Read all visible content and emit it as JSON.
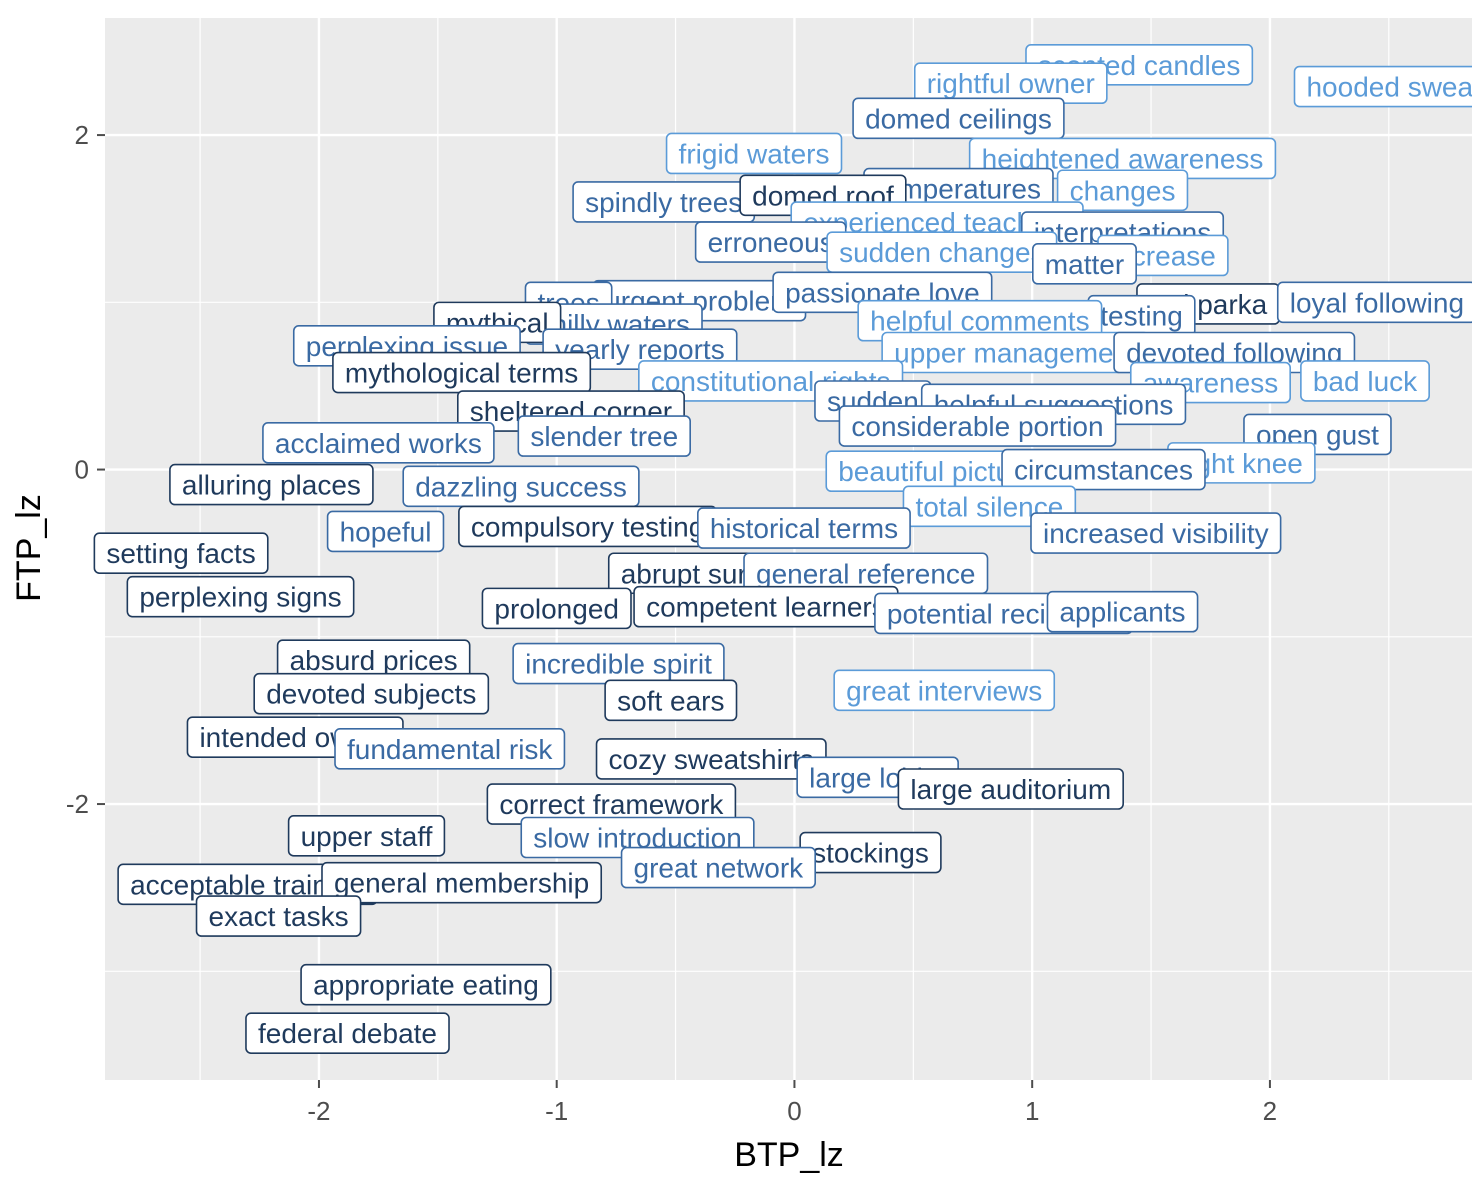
{
  "chart_data": {
    "type": "scatter",
    "title": "",
    "xlabel": "BTP_lz",
    "ylabel": "FTP_lz",
    "xlim": [
      -2.9,
      2.85
    ],
    "ylim": [
      -3.65,
      2.7
    ],
    "xticks": [
      -2,
      -1,
      0,
      1,
      2
    ],
    "yticks": [
      -2,
      0,
      2
    ],
    "xtick_labels": [
      "-2",
      "-1",
      "0",
      "1",
      "2"
    ],
    "ytick_labels": [
      "-2",
      "0",
      "2"
    ],
    "grid": true,
    "legend": "none",
    "colors": {
      "panel": "#ebebeb",
      "grid": "#ffffff",
      "dark": "#1f3a5c",
      "mid": "#3a6aa3",
      "light": "#5b9bd8",
      "tick": "#4d4d4d"
    },
    "points": [
      {
        "label": "scented candles",
        "x": 1.45,
        "y": 2.42,
        "shade": "light"
      },
      {
        "label": "hooded sweats",
        "x": 2.55,
        "y": 2.29,
        "shade": "light"
      },
      {
        "label": "rightful owner",
        "x": 0.91,
        "y": 2.31,
        "shade": "light"
      },
      {
        "label": "domed ceilings",
        "x": 0.69,
        "y": 2.1,
        "shade": "mid"
      },
      {
        "label": "frigid waters",
        "x": -0.17,
        "y": 1.89,
        "shade": "light"
      },
      {
        "label": "heightened awareness",
        "x": 1.38,
        "y": 1.86,
        "shade": "light"
      },
      {
        "label": "temperatures",
        "x": 0.69,
        "y": 1.68,
        "shade": "mid"
      },
      {
        "label": "changes",
        "x": 1.38,
        "y": 1.67,
        "shade": "light"
      },
      {
        "label": "spindly trees",
        "x": -0.55,
        "y": 1.6,
        "shade": "mid"
      },
      {
        "label": "domed roof",
        "x": 0.12,
        "y": 1.64,
        "shade": "dark"
      },
      {
        "label": "experienced teachers",
        "x": 0.6,
        "y": 1.48,
        "shade": "light"
      },
      {
        "label": "interpretations",
        "x": 1.38,
        "y": 1.42,
        "shade": "mid"
      },
      {
        "label": "erroneous",
        "x": -0.1,
        "y": 1.36,
        "shade": "mid"
      },
      {
        "label": "sudden changes",
        "x": 0.62,
        "y": 1.3,
        "shade": "light"
      },
      {
        "label": "increase",
        "x": 1.55,
        "y": 1.28,
        "shade": "light"
      },
      {
        "label": "matter",
        "x": 1.22,
        "y": 1.23,
        "shade": "mid"
      },
      {
        "label": "urgent problem",
        "x": -0.4,
        "y": 1.01,
        "shade": "mid"
      },
      {
        "label": "passionate love",
        "x": 0.37,
        "y": 1.06,
        "shade": "mid"
      },
      {
        "label": "trees",
        "x": -0.95,
        "y": 1.0,
        "shade": "mid"
      },
      {
        "label": "red parka",
        "x": 1.74,
        "y": 0.99,
        "shade": "dark"
      },
      {
        "label": "loyal following",
        "x": 2.45,
        "y": 1.0,
        "shade": "mid"
      },
      {
        "label": "testing",
        "x": 1.46,
        "y": 0.92,
        "shade": "mid"
      },
      {
        "label": "helpful comments",
        "x": 0.78,
        "y": 0.89,
        "shade": "light"
      },
      {
        "label": "chilly waters",
        "x": -0.76,
        "y": 0.87,
        "shade": "mid"
      },
      {
        "label": "mythical",
        "x": -1.25,
        "y": 0.88,
        "shade": "dark"
      },
      {
        "label": "perplexing issue",
        "x": -1.63,
        "y": 0.74,
        "shade": "mid"
      },
      {
        "label": "yearly reports",
        "x": -0.65,
        "y": 0.72,
        "shade": "mid"
      },
      {
        "label": "upper management",
        "x": 0.93,
        "y": 0.7,
        "shade": "light"
      },
      {
        "label": "devoted following",
        "x": 1.85,
        "y": 0.7,
        "shade": "mid"
      },
      {
        "label": "mythological terms",
        "x": -1.4,
        "y": 0.58,
        "shade": "dark"
      },
      {
        "label": "constitutional rights",
        "x": -0.1,
        "y": 0.53,
        "shade": "light"
      },
      {
        "label": "awareness",
        "x": 1.75,
        "y": 0.52,
        "shade": "light"
      },
      {
        "label": "bad luck",
        "x": 2.4,
        "y": 0.53,
        "shade": "light"
      },
      {
        "label": "sheltered corner",
        "x": -0.94,
        "y": 0.35,
        "shade": "dark"
      },
      {
        "label": "sudden",
        "x": 0.33,
        "y": 0.41,
        "shade": "mid"
      },
      {
        "label": "helpful suggestions",
        "x": 1.09,
        "y": 0.39,
        "shade": "mid"
      },
      {
        "label": "acclaimed works",
        "x": -1.75,
        "y": 0.16,
        "shade": "mid"
      },
      {
        "label": "slender tree",
        "x": -0.8,
        "y": 0.2,
        "shade": "mid"
      },
      {
        "label": "considerable portion",
        "x": 0.77,
        "y": 0.26,
        "shade": "mid"
      },
      {
        "label": "open gust",
        "x": 2.2,
        "y": 0.21,
        "shade": "mid"
      },
      {
        "label": "right knee",
        "x": 1.88,
        "y": 0.04,
        "shade": "light"
      },
      {
        "label": "beautiful picture",
        "x": 0.6,
        "y": -0.01,
        "shade": "light"
      },
      {
        "label": "circumstances",
        "x": 1.3,
        "y": 0.0,
        "shade": "mid"
      },
      {
        "label": "alluring places",
        "x": -2.2,
        "y": -0.09,
        "shade": "dark"
      },
      {
        "label": "dazzling success",
        "x": -1.15,
        "y": -0.1,
        "shade": "mid"
      },
      {
        "label": "total silence",
        "x": 0.82,
        "y": -0.22,
        "shade": "light"
      },
      {
        "label": "compulsory testing",
        "x": -0.87,
        "y": -0.34,
        "shade": "dark"
      },
      {
        "label": "historical terms",
        "x": 0.04,
        "y": -0.35,
        "shade": "mid"
      },
      {
        "label": "increased visibility",
        "x": 1.52,
        "y": -0.38,
        "shade": "mid"
      },
      {
        "label": "hopeful",
        "x": -1.72,
        "y": -0.37,
        "shade": "mid"
      },
      {
        "label": "setting facts",
        "x": -2.58,
        "y": -0.5,
        "shade": "dark"
      },
      {
        "label": "perplexing signs",
        "x": -2.33,
        "y": -0.76,
        "shade": "dark"
      },
      {
        "label": "abrupt surge",
        "x": -0.4,
        "y": -0.62,
        "shade": "dark"
      },
      {
        "label": "general reference",
        "x": 0.3,
        "y": -0.62,
        "shade": "mid"
      },
      {
        "label": "competent learners",
        "x": -0.12,
        "y": -0.82,
        "shade": "dark"
      },
      {
        "label": "potential recipients",
        "x": 0.88,
        "y": -0.86,
        "shade": "mid"
      },
      {
        "label": "prolonged",
        "x": -1.0,
        "y": -0.83,
        "shade": "dark"
      },
      {
        "label": "applicants",
        "x": 1.38,
        "y": -0.85,
        "shade": "mid"
      },
      {
        "label": "absurd prices",
        "x": -1.77,
        "y": -1.14,
        "shade": "dark"
      },
      {
        "label": "incredible spirit",
        "x": -0.74,
        "y": -1.16,
        "shade": "mid"
      },
      {
        "label": "devoted subjects",
        "x": -1.78,
        "y": -1.34,
        "shade": "dark"
      },
      {
        "label": "soft ears",
        "x": -0.52,
        "y": -1.38,
        "shade": "dark"
      },
      {
        "label": "great interviews",
        "x": 0.63,
        "y": -1.32,
        "shade": "light"
      },
      {
        "label": "intended owner",
        "x": -2.1,
        "y": -1.6,
        "shade": "dark"
      },
      {
        "label": "fundamental risk",
        "x": -1.45,
        "y": -1.67,
        "shade": "mid"
      },
      {
        "label": "cozy sweatshirts",
        "x": -0.35,
        "y": -1.73,
        "shade": "dark"
      },
      {
        "label": "large lobby",
        "x": 0.35,
        "y": -1.84,
        "shade": "mid"
      },
      {
        "label": "large auditorium",
        "x": 0.91,
        "y": -1.91,
        "shade": "dark"
      },
      {
        "label": "correct framework",
        "x": -0.77,
        "y": -2.0,
        "shade": "dark"
      },
      {
        "label": "upper staff",
        "x": -1.8,
        "y": -2.19,
        "shade": "dark"
      },
      {
        "label": "slow introduction",
        "x": -0.66,
        "y": -2.2,
        "shade": "mid"
      },
      {
        "label": "stockings",
        "x": 0.32,
        "y": -2.29,
        "shade": "dark"
      },
      {
        "label": "great network",
        "x": -0.32,
        "y": -2.38,
        "shade": "mid"
      },
      {
        "label": "acceptable training",
        "x": -2.3,
        "y": -2.48,
        "shade": "dark"
      },
      {
        "label": "general membership",
        "x": -1.4,
        "y": -2.47,
        "shade": "dark"
      },
      {
        "label": "exact tasks",
        "x": -2.17,
        "y": -2.67,
        "shade": "dark"
      },
      {
        "label": "appropriate eating",
        "x": -1.55,
        "y": -3.08,
        "shade": "dark"
      },
      {
        "label": "federal debate",
        "x": -1.88,
        "y": -3.37,
        "shade": "dark"
      }
    ]
  }
}
